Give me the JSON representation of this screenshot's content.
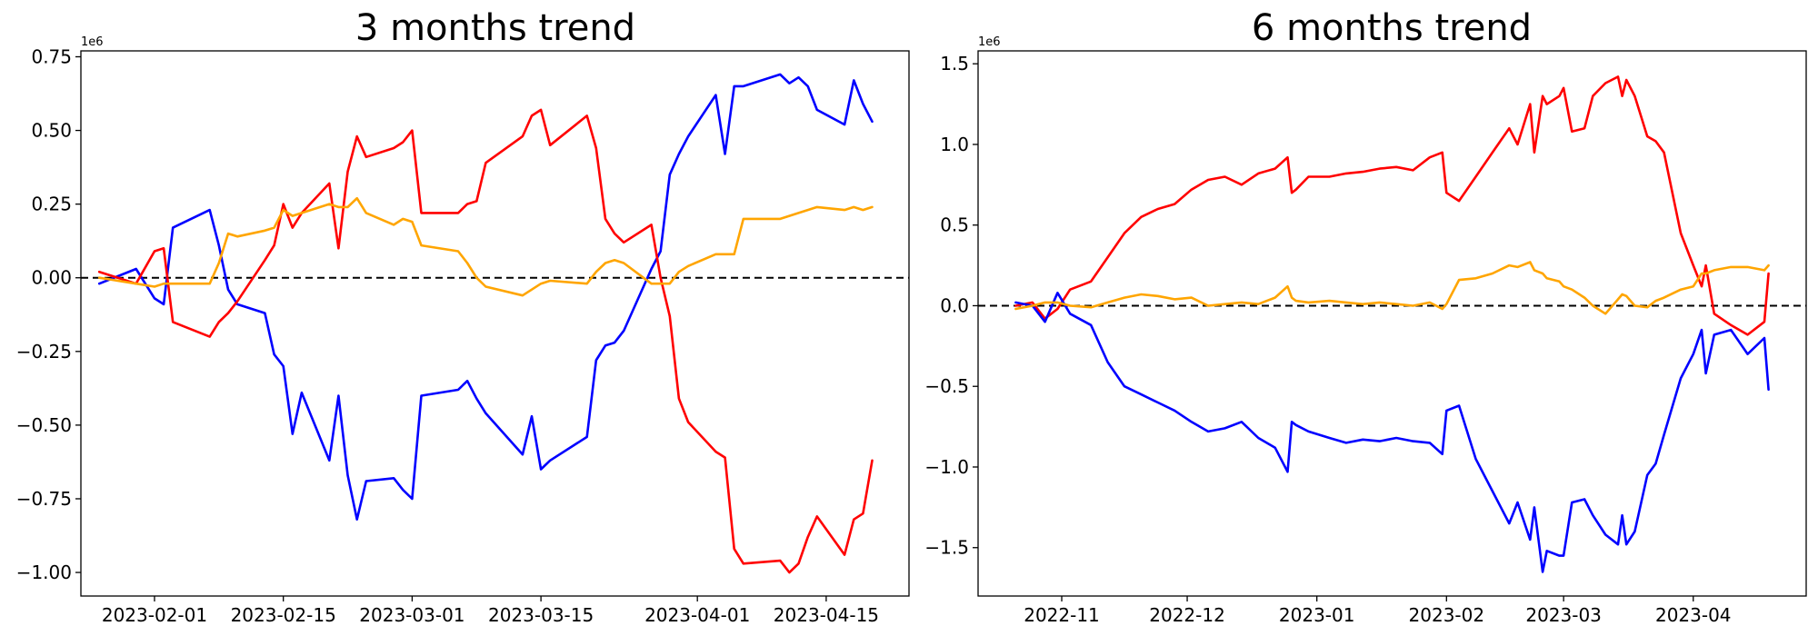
{
  "chart_data": [
    {
      "type": "line",
      "title": "3 months trend",
      "xlabel": "",
      "ylabel": "",
      "y_offset_label": "1e6",
      "x_is_date": true,
      "xlim": [
        "2023-01-24",
        "2023-04-24"
      ],
      "ylim": [
        -1.08,
        0.77
      ],
      "x_ticks": [
        "2023-02-01",
        "2023-02-15",
        "2023-03-01",
        "2023-03-15",
        "2023-04-01",
        "2023-04-15"
      ],
      "y_ticks": [
        0.75,
        0.5,
        0.25,
        0.0,
        -0.25,
        -0.5,
        -0.75,
        -1.0
      ],
      "y_tick_labels": [
        "0.75",
        "0.50",
        "0.25",
        "0.00",
        "−0.25",
        "−0.50",
        "−0.75",
        "−1.00"
      ],
      "reference_line_y": 0,
      "series": [
        {
          "color": "#0000ff",
          "x": [
            "2023-01-26",
            "2023-01-30",
            "2023-02-01",
            "2023-02-02",
            "2023-02-03",
            "2023-02-07",
            "2023-02-08",
            "2023-02-09",
            "2023-02-10",
            "2023-02-13",
            "2023-02-14",
            "2023-02-15",
            "2023-02-16",
            "2023-02-17",
            "2023-02-20",
            "2023-02-21",
            "2023-02-22",
            "2023-02-23",
            "2023-02-24",
            "2023-02-27",
            "2023-02-28",
            "2023-03-01",
            "2023-03-02",
            "2023-03-06",
            "2023-03-07",
            "2023-03-08",
            "2023-03-09",
            "2023-03-13",
            "2023-03-14",
            "2023-03-15",
            "2023-03-16",
            "2023-03-20",
            "2023-03-21",
            "2023-03-22",
            "2023-03-23",
            "2023-03-24",
            "2023-03-27",
            "2023-03-28",
            "2023-03-29",
            "2023-03-30",
            "2023-03-31",
            "2023-04-03",
            "2023-04-04",
            "2023-04-05",
            "2023-04-06",
            "2023-04-10",
            "2023-04-11",
            "2023-04-12",
            "2023-04-13",
            "2023-04-14",
            "2023-04-17",
            "2023-04-18",
            "2023-04-19",
            "2023-04-20"
          ],
          "values": [
            -0.02,
            0.03,
            -0.07,
            -0.09,
            0.17,
            0.23,
            0.11,
            -0.04,
            -0.09,
            -0.12,
            -0.26,
            -0.3,
            -0.53,
            -0.39,
            -0.62,
            -0.4,
            -0.67,
            -0.82,
            -0.69,
            -0.68,
            -0.72,
            -0.75,
            -0.4,
            -0.38,
            -0.35,
            -0.41,
            -0.46,
            -0.6,
            -0.47,
            -0.65,
            -0.62,
            -0.54,
            -0.28,
            -0.23,
            -0.22,
            -0.18,
            0.03,
            0.09,
            0.35,
            0.42,
            0.48,
            0.62,
            0.42,
            0.65,
            0.65,
            0.69,
            0.66,
            0.68,
            0.65,
            0.57,
            0.52,
            0.67,
            0.59,
            0.53
          ]
        },
        {
          "color": "#ff0000",
          "x": [
            "2023-01-26",
            "2023-01-30",
            "2023-02-01",
            "2023-02-02",
            "2023-02-03",
            "2023-02-07",
            "2023-02-08",
            "2023-02-09",
            "2023-02-10",
            "2023-02-13",
            "2023-02-14",
            "2023-02-15",
            "2023-02-16",
            "2023-02-17",
            "2023-02-20",
            "2023-02-21",
            "2023-02-22",
            "2023-02-23",
            "2023-02-24",
            "2023-02-27",
            "2023-02-28",
            "2023-03-01",
            "2023-03-02",
            "2023-03-06",
            "2023-03-07",
            "2023-03-08",
            "2023-03-09",
            "2023-03-13",
            "2023-03-14",
            "2023-03-15",
            "2023-03-16",
            "2023-03-20",
            "2023-03-21",
            "2023-03-22",
            "2023-03-23",
            "2023-03-24",
            "2023-03-27",
            "2023-03-28",
            "2023-03-29",
            "2023-03-30",
            "2023-03-31",
            "2023-04-03",
            "2023-04-04",
            "2023-04-05",
            "2023-04-06",
            "2023-04-10",
            "2023-04-11",
            "2023-04-12",
            "2023-04-13",
            "2023-04-14",
            "2023-04-17",
            "2023-04-18",
            "2023-04-19",
            "2023-04-20"
          ],
          "values": [
            0.02,
            -0.02,
            0.09,
            0.1,
            -0.15,
            -0.2,
            -0.15,
            -0.12,
            -0.08,
            0.06,
            0.11,
            0.25,
            0.17,
            0.22,
            0.32,
            0.1,
            0.36,
            0.48,
            0.41,
            0.44,
            0.46,
            0.5,
            0.22,
            0.22,
            0.25,
            0.26,
            0.39,
            0.48,
            0.55,
            0.57,
            0.45,
            0.55,
            0.44,
            0.2,
            0.15,
            0.12,
            0.18,
            0.0,
            -0.13,
            -0.41,
            -0.49,
            -0.59,
            -0.61,
            -0.92,
            -0.97,
            -0.96,
            -1.0,
            -0.97,
            -0.88,
            -0.81,
            -0.94,
            -0.82,
            -0.8,
            -0.62
          ]
        },
        {
          "color": "#ffa500",
          "x": [
            "2023-01-26",
            "2023-01-30",
            "2023-02-01",
            "2023-02-02",
            "2023-02-03",
            "2023-02-07",
            "2023-02-08",
            "2023-02-09",
            "2023-02-10",
            "2023-02-13",
            "2023-02-14",
            "2023-02-15",
            "2023-02-16",
            "2023-02-17",
            "2023-02-20",
            "2023-02-21",
            "2023-02-22",
            "2023-02-23",
            "2023-02-24",
            "2023-02-27",
            "2023-02-28",
            "2023-03-01",
            "2023-03-02",
            "2023-03-06",
            "2023-03-07",
            "2023-03-08",
            "2023-03-09",
            "2023-03-13",
            "2023-03-14",
            "2023-03-15",
            "2023-03-16",
            "2023-03-20",
            "2023-03-21",
            "2023-03-22",
            "2023-03-23",
            "2023-03-24",
            "2023-03-27",
            "2023-03-28",
            "2023-03-29",
            "2023-03-30",
            "2023-03-31",
            "2023-04-03",
            "2023-04-04",
            "2023-04-05",
            "2023-04-06",
            "2023-04-10",
            "2023-04-11",
            "2023-04-12",
            "2023-04-13",
            "2023-04-14",
            "2023-04-17",
            "2023-04-18",
            "2023-04-19",
            "2023-04-20"
          ],
          "values": [
            0.0,
            -0.02,
            -0.03,
            -0.02,
            -0.02,
            -0.02,
            0.05,
            0.15,
            0.14,
            0.16,
            0.17,
            0.23,
            0.21,
            0.22,
            0.25,
            0.24,
            0.24,
            0.27,
            0.22,
            0.18,
            0.2,
            0.19,
            0.11,
            0.09,
            0.05,
            0.0,
            -0.03,
            -0.06,
            -0.04,
            -0.02,
            -0.01,
            -0.02,
            0.02,
            0.05,
            0.06,
            0.05,
            -0.02,
            -0.02,
            -0.02,
            0.02,
            0.04,
            0.08,
            0.08,
            0.08,
            0.2,
            0.2,
            0.21,
            0.22,
            0.23,
            0.24,
            0.23,
            0.24,
            0.23,
            0.24
          ]
        }
      ]
    },
    {
      "type": "line",
      "title": "6 months trend",
      "xlabel": "",
      "ylabel": "",
      "y_offset_label": "1e6",
      "x_is_date": true,
      "xlim": [
        "2022-10-12",
        "2023-04-28"
      ],
      "ylim": [
        -1.8,
        1.58
      ],
      "x_ticks": [
        "2022-11-01",
        "2022-12-01",
        "2023-01-01",
        "2023-02-01",
        "2023-03-01",
        "2023-04-01"
      ],
      "x_tick_labels": [
        "2022-11",
        "2022-12",
        "2023-01",
        "2023-02",
        "2023-03",
        "2023-04"
      ],
      "y_ticks": [
        1.5,
        1.0,
        0.5,
        0.0,
        -0.5,
        -1.0,
        -1.5
      ],
      "y_tick_labels": [
        "1.5",
        "1.0",
        "0.5",
        "0.0",
        "−0.5",
        "−1.0",
        "−1.5"
      ],
      "reference_line_y": 0,
      "series": [
        {
          "color": "#ff0000",
          "x": [
            "2022-10-21",
            "2022-10-25",
            "2022-10-28",
            "2022-10-31",
            "2022-11-03",
            "2022-11-08",
            "2022-11-12",
            "2022-11-16",
            "2022-11-20",
            "2022-11-24",
            "2022-11-28",
            "2022-12-02",
            "2022-12-06",
            "2022-12-10",
            "2022-12-14",
            "2022-12-18",
            "2022-12-22",
            "2022-12-25",
            "2022-12-26",
            "2022-12-27",
            "2022-12-30",
            "2023-01-04",
            "2023-01-08",
            "2023-01-12",
            "2023-01-16",
            "2023-01-20",
            "2023-01-24",
            "2023-01-28",
            "2023-01-31",
            "2023-02-01",
            "2023-02-04",
            "2023-02-08",
            "2023-02-12",
            "2023-02-16",
            "2023-02-18",
            "2023-02-21",
            "2023-02-22",
            "2023-02-24",
            "2023-02-25",
            "2023-02-28",
            "2023-03-01",
            "2023-03-03",
            "2023-03-06",
            "2023-03-08",
            "2023-03-11",
            "2023-03-14",
            "2023-03-15",
            "2023-03-16",
            "2023-03-18",
            "2023-03-21",
            "2023-03-23",
            "2023-03-25",
            "2023-03-29",
            "2023-04-01",
            "2023-04-03",
            "2023-04-04",
            "2023-04-06",
            "2023-04-10",
            "2023-04-14",
            "2023-04-18",
            "2023-04-19"
          ],
          "values": [
            0.0,
            0.02,
            -0.08,
            -0.02,
            0.1,
            0.15,
            0.3,
            0.45,
            0.55,
            0.6,
            0.63,
            0.72,
            0.78,
            0.8,
            0.75,
            0.82,
            0.85,
            0.92,
            0.7,
            0.72,
            0.8,
            0.8,
            0.82,
            0.83,
            0.85,
            0.86,
            0.84,
            0.92,
            0.95,
            0.7,
            0.65,
            0.8,
            0.95,
            1.1,
            1.0,
            1.25,
            0.95,
            1.3,
            1.25,
            1.3,
            1.35,
            1.08,
            1.1,
            1.3,
            1.38,
            1.42,
            1.3,
            1.4,
            1.3,
            1.05,
            1.02,
            0.95,
            0.45,
            0.25,
            0.12,
            0.25,
            -0.05,
            -0.12,
            -0.18,
            -0.1,
            0.2
          ]
        },
        {
          "color": "#0000ff",
          "x": [
            "2022-10-21",
            "2022-10-25",
            "2022-10-28",
            "2022-10-31",
            "2022-11-03",
            "2022-11-08",
            "2022-11-12",
            "2022-11-16",
            "2022-11-20",
            "2022-11-24",
            "2022-11-28",
            "2022-12-02",
            "2022-12-06",
            "2022-12-10",
            "2022-12-14",
            "2022-12-18",
            "2022-12-22",
            "2022-12-25",
            "2022-12-26",
            "2022-12-27",
            "2022-12-30",
            "2023-01-04",
            "2023-01-08",
            "2023-01-12",
            "2023-01-16",
            "2023-01-20",
            "2023-01-24",
            "2023-01-28",
            "2023-01-31",
            "2023-02-01",
            "2023-02-04",
            "2023-02-08",
            "2023-02-12",
            "2023-02-16",
            "2023-02-18",
            "2023-02-21",
            "2023-02-22",
            "2023-02-24",
            "2023-02-25",
            "2023-02-28",
            "2023-03-01",
            "2023-03-03",
            "2023-03-06",
            "2023-03-08",
            "2023-03-11",
            "2023-03-14",
            "2023-03-15",
            "2023-03-16",
            "2023-03-18",
            "2023-03-21",
            "2023-03-23",
            "2023-03-25",
            "2023-03-29",
            "2023-04-01",
            "2023-04-03",
            "2023-04-04",
            "2023-04-06",
            "2023-04-10",
            "2023-04-14",
            "2023-04-18",
            "2023-04-19"
          ],
          "values": [
            0.02,
            0.0,
            -0.1,
            0.08,
            -0.05,
            -0.12,
            -0.35,
            -0.5,
            -0.55,
            -0.6,
            -0.65,
            -0.72,
            -0.78,
            -0.76,
            -0.72,
            -0.82,
            -0.88,
            -1.03,
            -0.72,
            -0.74,
            -0.78,
            -0.82,
            -0.85,
            -0.83,
            -0.84,
            -0.82,
            -0.84,
            -0.85,
            -0.92,
            -0.65,
            -0.62,
            -0.95,
            -1.15,
            -1.35,
            -1.22,
            -1.45,
            -1.25,
            -1.65,
            -1.52,
            -1.55,
            -1.55,
            -1.22,
            -1.2,
            -1.3,
            -1.42,
            -1.48,
            -1.3,
            -1.48,
            -1.4,
            -1.05,
            -0.98,
            -0.8,
            -0.45,
            -0.3,
            -0.15,
            -0.42,
            -0.18,
            -0.15,
            -0.3,
            -0.2,
            -0.52
          ]
        },
        {
          "color": "#ffa500",
          "x": [
            "2022-10-21",
            "2022-10-25",
            "2022-10-28",
            "2022-10-31",
            "2022-11-03",
            "2022-11-08",
            "2022-11-12",
            "2022-11-16",
            "2022-11-20",
            "2022-11-24",
            "2022-11-28",
            "2022-12-02",
            "2022-12-06",
            "2022-12-10",
            "2022-12-14",
            "2022-12-18",
            "2022-12-22",
            "2022-12-25",
            "2022-12-26",
            "2022-12-27",
            "2022-12-30",
            "2023-01-04",
            "2023-01-08",
            "2023-01-12",
            "2023-01-16",
            "2023-01-20",
            "2023-01-24",
            "2023-01-28",
            "2023-01-31",
            "2023-02-01",
            "2023-02-04",
            "2023-02-08",
            "2023-02-12",
            "2023-02-16",
            "2023-02-18",
            "2023-02-21",
            "2023-02-22",
            "2023-02-24",
            "2023-02-25",
            "2023-02-28",
            "2023-03-01",
            "2023-03-03",
            "2023-03-06",
            "2023-03-08",
            "2023-03-11",
            "2023-03-14",
            "2023-03-15",
            "2023-03-16",
            "2023-03-18",
            "2023-03-21",
            "2023-03-23",
            "2023-03-25",
            "2023-03-29",
            "2023-04-01",
            "2023-04-03",
            "2023-04-04",
            "2023-04-06",
            "2023-04-10",
            "2023-04-14",
            "2023-04-18",
            "2023-04-19"
          ],
          "values": [
            -0.02,
            0.0,
            0.02,
            0.02,
            0.0,
            -0.01,
            0.02,
            0.05,
            0.07,
            0.06,
            0.04,
            0.05,
            0.0,
            0.01,
            0.02,
            0.01,
            0.05,
            0.12,
            0.05,
            0.03,
            0.02,
            0.03,
            0.02,
            0.01,
            0.02,
            0.01,
            0.0,
            0.02,
            -0.02,
            0.01,
            0.16,
            0.17,
            0.2,
            0.25,
            0.24,
            0.27,
            0.22,
            0.2,
            0.17,
            0.15,
            0.12,
            0.1,
            0.05,
            0.0,
            -0.05,
            0.04,
            0.07,
            0.06,
            0.0,
            -0.01,
            0.03,
            0.05,
            0.1,
            0.12,
            0.2,
            0.2,
            0.22,
            0.24,
            0.24,
            0.22,
            0.25
          ]
        }
      ]
    }
  ]
}
